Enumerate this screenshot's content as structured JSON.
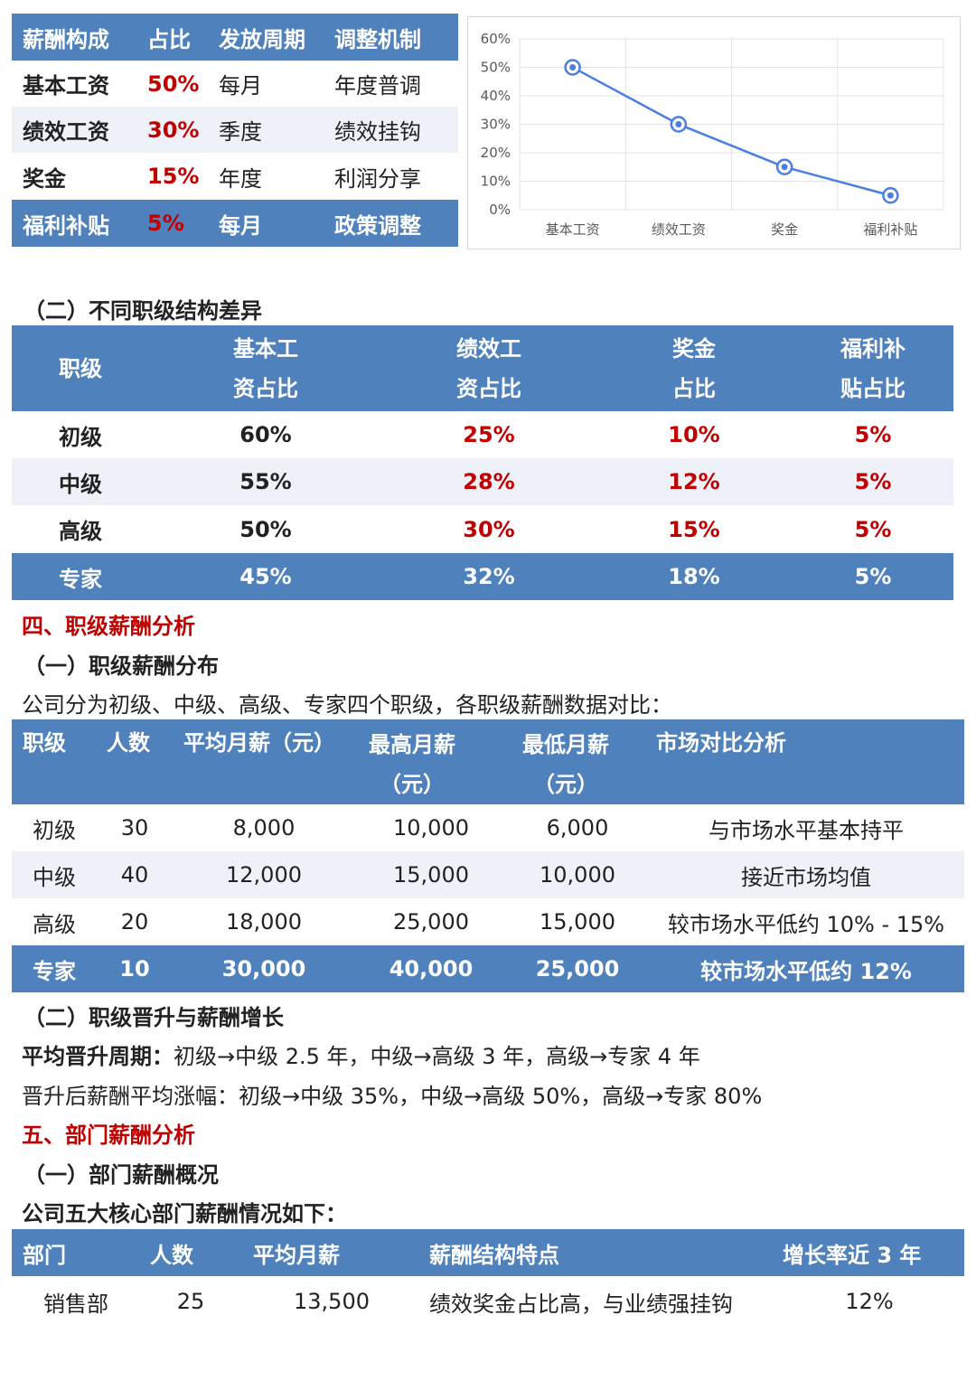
{
  "comp_table": {
    "headers": [
      "薪酬构成",
      "占比",
      "发放周期",
      "调整机制"
    ],
    "rows": [
      [
        "基本工资",
        "50%",
        "每月",
        "年度普调"
      ],
      [
        "绩效工资",
        "30%",
        "季度",
        "绩效挂钩"
      ],
      [
        "奖金",
        "15%",
        "年度",
        "利润分享"
      ],
      [
        "福利补贴",
        "5%",
        "每月",
        "政策调整"
      ]
    ]
  },
  "chart_data": {
    "type": "line",
    "categories": [
      "基本工资",
      "绩效工资",
      "奖金",
      "福利补贴"
    ],
    "values": [
      50,
      30,
      15,
      5
    ],
    "yticks": [
      "0%",
      "10%",
      "20%",
      "30%",
      "40%",
      "50%",
      "60%"
    ],
    "ylim": [
      0,
      60
    ],
    "grid": true,
    "line_color": "#4a7fe0"
  },
  "section2_title": "（二）不同职级结构差异",
  "level_struct": {
    "headers": [
      [
        "职级",
        ""
      ],
      [
        "基本工",
        "资占比"
      ],
      [
        "绩效工",
        "资占比"
      ],
      [
        "奖金",
        "占比"
      ],
      [
        "福利补",
        "贴占比"
      ]
    ],
    "rows": [
      [
        "初级",
        "60%",
        "25%",
        "10%",
        "5%"
      ],
      [
        "中级",
        "55%",
        "28%",
        "12%",
        "5%"
      ],
      [
        "高级",
        "50%",
        "30%",
        "15%",
        "5%"
      ],
      [
        "专家",
        "45%",
        "32%",
        "18%",
        "5%"
      ]
    ]
  },
  "section4_title": "四、职级薪酬分析",
  "section4_1_title": "（一）职级薪酬分布",
  "section4_1_intro": "公司分为初级、中级、高级、专家四个职级，各职级薪酬数据对比：",
  "salary_table": {
    "headers": [
      [
        "职级",
        ""
      ],
      [
        "人数",
        ""
      ],
      [
        "平均月薪（元）",
        ""
      ],
      [
        "最高月薪",
        "（元）"
      ],
      [
        "最低月薪",
        "（元）"
      ],
      [
        "市场对比分析",
        ""
      ]
    ],
    "rows": [
      [
        "初级",
        "30",
        "8,000",
        "10,000",
        "6,000",
        "与市场水平基本持平"
      ],
      [
        "中级",
        "40",
        "12,000",
        "15,000",
        "10,000",
        "接近市场均值"
      ],
      [
        "高级",
        "20",
        "18,000",
        "25,000",
        "15,000",
        "较市场水平低约 10% - 15%"
      ],
      [
        "专家",
        "10",
        "30,000",
        "40,000",
        "25,000",
        "较市场水平低约 12%"
      ]
    ]
  },
  "section4_2_title": "（二）职级晋升与薪酬增长",
  "promo_label": "平均晋升周期：",
  "promo_text": "初级→中级 2.5 年，中级→高级 3 年，高级→专家 4 年",
  "raise_text": "晋升后薪酬平均涨幅：初级→中级 35%，中级→高级 50%，高级→专家 80%",
  "section5_title": "五、部门薪酬分析",
  "section5_1_title": "（一）部门薪酬概况",
  "section5_1_intro": "公司五大核心部门薪酬情况如下：",
  "dept_table": {
    "headers": [
      "部门",
      "人数",
      "平均月薪",
      "薪酬结构特点",
      "增长率近 3 年"
    ],
    "rows": [
      [
        "销售部",
        "25",
        "13,500",
        "绩效奖金占比高，与业绩强挂钩",
        "12%"
      ]
    ]
  }
}
